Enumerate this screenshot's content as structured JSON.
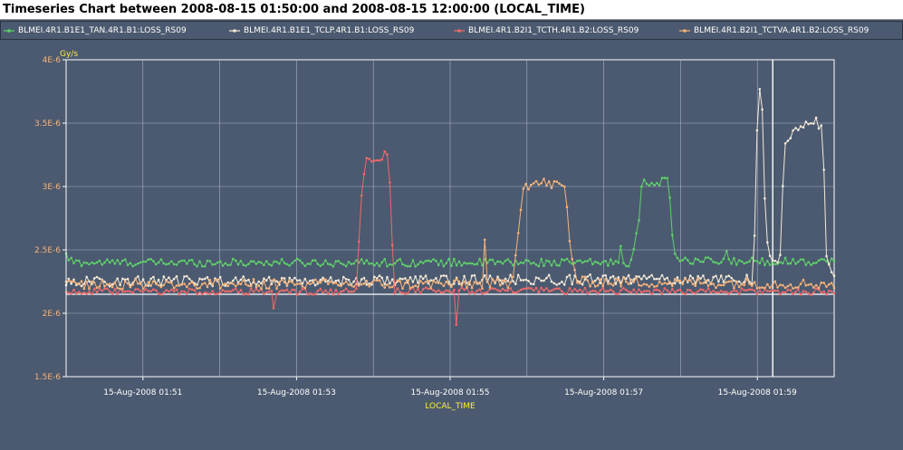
{
  "title": "Timeseries Chart between 2008-08-15 01:50:00 and 2008-08-15 12:00:00 (LOCAL_TIME)",
  "chart_data": {
    "type": "line",
    "title": "Timeseries Chart between 2008-08-15 01:50:00 and 2008-08-15 12:00:00 (LOCAL_TIME)",
    "xlabel": "LOCAL_TIME",
    "ylabel": "Gy/s",
    "x_range_minutes": [
      0.0,
      10.0
    ],
    "x_origin": "15-Aug-2008 01:50:00",
    "ylim": [
      1.5e-06,
      4e-06
    ],
    "grid": true,
    "legend_placement": "top",
    "y_ticks": [
      {
        "value": 1.5e-06,
        "label": "1.5E-6"
      },
      {
        "value": 2e-06,
        "label": "2E-6"
      },
      {
        "value": 2.5e-06,
        "label": "2.5E-6"
      },
      {
        "value": 3e-06,
        "label": "3E-6"
      },
      {
        "value": 3.5e-06,
        "label": "3.5E-6"
      },
      {
        "value": 4e-06,
        "label": "4E-6"
      }
    ],
    "x_ticks": [
      {
        "value": 1.0,
        "label": "15-Aug-2008 01:51"
      },
      {
        "value": 3.0,
        "label": "15-Aug-2008 01:53"
      },
      {
        "value": 5.0,
        "label": "15-Aug-2008 01:55"
      },
      {
        "value": 7.0,
        "label": "15-Aug-2008 01:57"
      },
      {
        "value": 9.0,
        "label": "15-Aug-2008 01:59"
      }
    ],
    "x_minor_grid": [
      2.0,
      4.0,
      6.0,
      8.0
    ],
    "reference_line_y": 2.15e-06,
    "vertical_marker_x": 9.2,
    "series": [
      {
        "name": "BLMEI.4R1.B1E1_TAN.4R1.B1:LOSS_RS09",
        "color": "#5fd16a",
        "baseline": 2.41e-06,
        "noise": 3e-08,
        "count": 300,
        "segments": [
          [
            0.0,
            2.45e-06
          ],
          [
            0.1,
            2.4e-06
          ],
          [
            7.35,
            2.4e-06
          ],
          [
            7.45,
            2.68e-06
          ],
          [
            7.5,
            3.03e-06
          ],
          [
            7.85,
            3.04e-06
          ],
          [
            7.9,
            2.52e-06
          ],
          [
            8.0,
            2.41e-06
          ],
          [
            10.0,
            2.41e-06
          ]
        ],
        "spikes": [
          [
            7.22,
            2.53e-06
          ],
          [
            8.6,
            2.49e-06
          ]
        ]
      },
      {
        "name": "BLMEI.4R1.B1E1_TCLP.4R1.B1:LOSS_RS09",
        "color": "#f4ead8",
        "baseline": 2.26e-06,
        "noise": 4e-08,
        "count": 300,
        "segments": [
          [
            0.0,
            2.25e-06
          ],
          [
            8.95,
            2.27e-06
          ],
          [
            9.0,
            3.55e-06
          ],
          [
            9.05,
            3.87e-06
          ],
          [
            9.1,
            2.84e-06
          ],
          [
            9.15,
            2.43e-06
          ],
          [
            9.3,
            2.42e-06
          ],
          [
            9.35,
            3.37e-06
          ],
          [
            9.45,
            3.43e-06
          ],
          [
            9.6,
            3.47e-06
          ],
          [
            9.75,
            3.52e-06
          ],
          [
            9.85,
            3.47e-06
          ],
          [
            9.9,
            2.42e-06
          ],
          [
            10.0,
            2.27e-06
          ]
        ],
        "spikes": []
      },
      {
        "name": "BLMEI.4R1.B2I1_TCTH.4R1.B2:LOSS_RS09",
        "color": "#f06a6a",
        "baseline": 2.17e-06,
        "noise": 2.5e-08,
        "count": 300,
        "segments": [
          [
            0.0,
            2.17e-06
          ],
          [
            3.78,
            2.17e-06
          ],
          [
            3.85,
            2.97e-06
          ],
          [
            3.9,
            3.2e-06
          ],
          [
            4.1,
            3.22e-06
          ],
          [
            4.15,
            3.27e-06
          ],
          [
            4.2,
            3.22e-06
          ],
          [
            4.27,
            2.18e-06
          ],
          [
            10.0,
            2.17e-06
          ]
        ],
        "spikes": [
          [
            2.7,
            2.04e-06
          ],
          [
            5.08,
            1.91e-06
          ]
        ]
      },
      {
        "name": "BLMEI.4R1.B2I1_TCTVA.4R1.B2:LOSS_RS09",
        "color": "#f7b37b",
        "baseline": 2.23e-06,
        "noise": 4e-08,
        "count": 300,
        "segments": [
          [
            0.0,
            2.23e-06
          ],
          [
            5.8,
            2.23e-06
          ],
          [
            5.9,
            2.72e-06
          ],
          [
            5.95,
            3.01e-06
          ],
          [
            6.2,
            3.03e-06
          ],
          [
            6.5,
            3e-06
          ],
          [
            6.55,
            2.58e-06
          ],
          [
            6.65,
            2.25e-06
          ],
          [
            10.0,
            2.23e-06
          ]
        ],
        "spikes": [
          [
            5.45,
            2.58e-06
          ]
        ]
      }
    ]
  }
}
